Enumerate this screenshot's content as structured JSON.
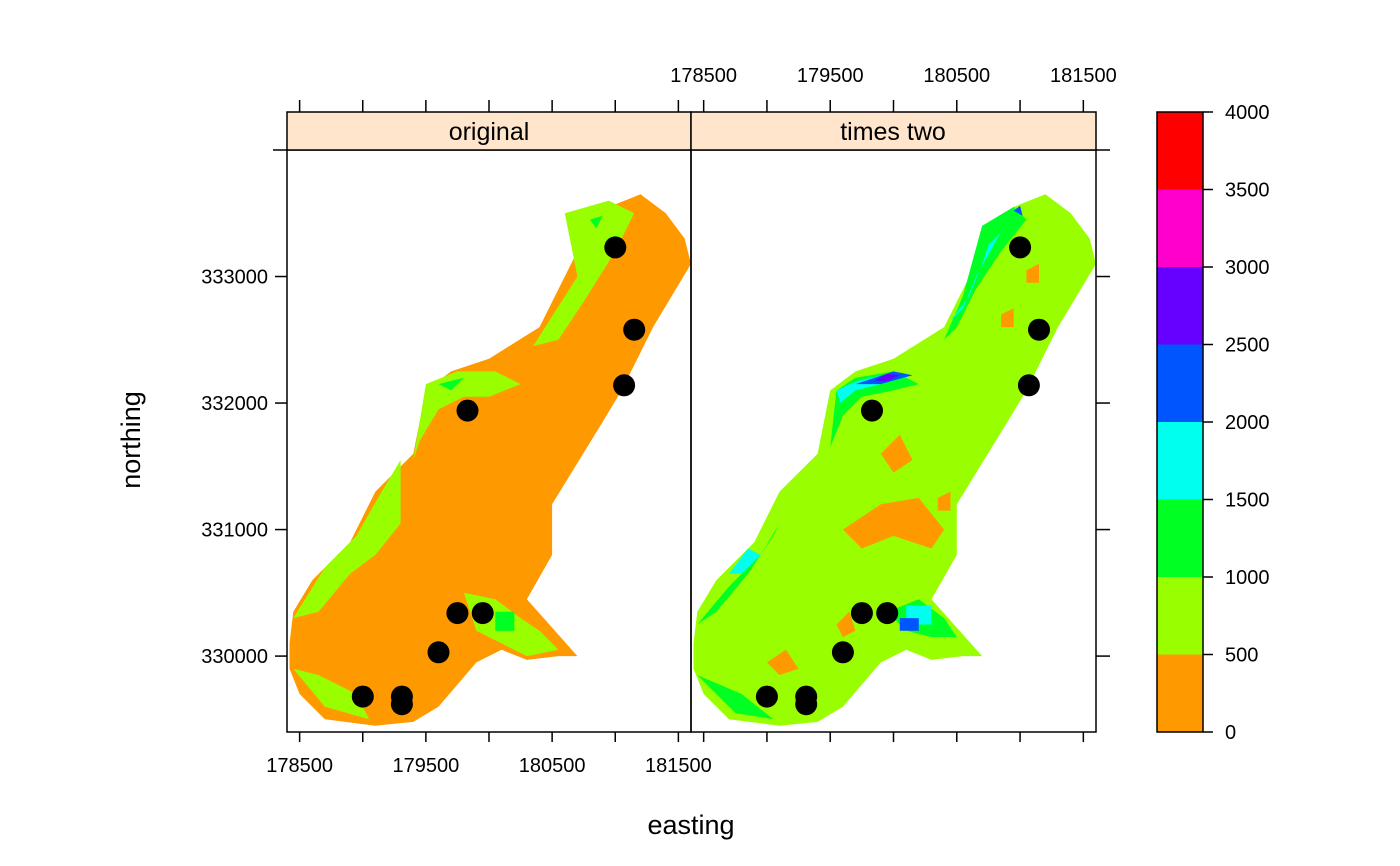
{
  "chart_data": {
    "type": "heatmap",
    "panels": [
      {
        "name": "original",
        "label": "original"
      },
      {
        "name": "times two",
        "label": "times two"
      }
    ],
    "xlabel": "easting",
    "ylabel": "northing",
    "x_ticks": [
      178500,
      179000,
      179500,
      180000,
      180500,
      181000,
      181500
    ],
    "x_tick_labels": [
      "178500",
      "179500",
      "180500",
      "181500"
    ],
    "y_ticks": [
      330000,
      331000,
      332000,
      333000
    ],
    "y_tick_labels": [
      "330000",
      "331000",
      "332000",
      "333000"
    ],
    "xlim": [
      178400,
      181600
    ],
    "ylim": [
      329400,
      334000
    ],
    "colorbar": {
      "breaks": [
        0,
        500,
        1000,
        1500,
        2000,
        2500,
        3000,
        3500,
        4000
      ],
      "tick_labels": [
        "0",
        "500",
        "1000",
        "1500",
        "2000",
        "2500",
        "3000",
        "3500",
        "4000"
      ],
      "colors": [
        "#FF9900",
        "#99FF00",
        "#00FF22",
        "#00FFEE",
        "#0055FF",
        "#6600FF",
        "#FF00CC",
        "#FF0000"
      ]
    },
    "points": [
      {
        "x": 181000,
        "y": 333230
      },
      {
        "x": 181150,
        "y": 332580
      },
      {
        "x": 181070,
        "y": 332140
      },
      {
        "x": 179830,
        "y": 331940
      },
      {
        "x": 179750,
        "y": 330340
      },
      {
        "x": 179950,
        "y": 330340
      },
      {
        "x": 179600,
        "y": 330030
      },
      {
        "x": 179000,
        "y": 329680
      },
      {
        "x": 179310,
        "y": 329680
      },
      {
        "x": 179310,
        "y": 329620
      }
    ],
    "region_outline": [
      [
        178420,
        330100
      ],
      [
        178420,
        329900
      ],
      [
        178500,
        329700
      ],
      [
        178700,
        329500
      ],
      [
        179100,
        329450
      ],
      [
        179400,
        329480
      ],
      [
        179600,
        329600
      ],
      [
        179900,
        329950
      ],
      [
        180100,
        330050
      ],
      [
        180300,
        329970
      ],
      [
        180550,
        330000
      ],
      [
        180700,
        330000
      ],
      [
        180300,
        330450
      ],
      [
        180500,
        330800
      ],
      [
        180500,
        331200
      ],
      [
        180900,
        331850
      ],
      [
        181050,
        332100
      ],
      [
        181300,
        332600
      ],
      [
        181600,
        333100
      ],
      [
        181550,
        333300
      ],
      [
        181400,
        333500
      ],
      [
        181200,
        333650
      ],
      [
        180950,
        333550
      ],
      [
        180700,
        333200
      ],
      [
        180550,
        332900
      ],
      [
        180400,
        332600
      ],
      [
        180000,
        332350
      ],
      [
        179700,
        332250
      ],
      [
        179500,
        332100
      ],
      [
        179400,
        331600
      ],
      [
        179100,
        331300
      ],
      [
        178900,
        330900
      ],
      [
        178600,
        330600
      ],
      [
        178450,
        330350
      ]
    ],
    "original_zones": [
      {
        "class": 1,
        "poly": [
          [
            180600,
            333500
          ],
          [
            180950,
            333600
          ],
          [
            181150,
            333500
          ],
          [
            181000,
            333200
          ],
          [
            180750,
            332800
          ],
          [
            180550,
            332500
          ],
          [
            180350,
            332450
          ],
          [
            180700,
            333000
          ]
        ]
      },
      {
        "class": 1,
        "poly": [
          [
            179500,
            332150
          ],
          [
            179750,
            332250
          ],
          [
            180050,
            332250
          ],
          [
            180250,
            332150
          ],
          [
            180000,
            332050
          ],
          [
            179800,
            332050
          ],
          [
            179600,
            331950
          ],
          [
            179450,
            331700
          ],
          [
            179400,
            331550
          ]
        ]
      },
      {
        "class": 1,
        "poly": [
          [
            178450,
            330300
          ],
          [
            178700,
            330700
          ],
          [
            178950,
            330950
          ],
          [
            179150,
            331300
          ],
          [
            179300,
            331550
          ],
          [
            179300,
            331050
          ],
          [
            179100,
            330800
          ],
          [
            178900,
            330650
          ],
          [
            178650,
            330350
          ]
        ]
      },
      {
        "class": 1,
        "poly": [
          [
            178450,
            329900
          ],
          [
            178700,
            329600
          ],
          [
            179050,
            329500
          ],
          [
            178950,
            329700
          ],
          [
            178650,
            329850
          ]
        ]
      },
      {
        "class": 1,
        "poly": [
          [
            179800,
            330500
          ],
          [
            180050,
            330450
          ],
          [
            180250,
            330300
          ],
          [
            180400,
            330200
          ],
          [
            180550,
            330050
          ],
          [
            180300,
            330000
          ],
          [
            180100,
            330100
          ],
          [
            179900,
            330200
          ]
        ]
      },
      {
        "class": 2,
        "poly": [
          [
            180050,
            330350
          ],
          [
            180200,
            330350
          ],
          [
            180200,
            330200
          ],
          [
            180050,
            330200
          ]
        ]
      },
      {
        "class": 2,
        "poly": [
          [
            179600,
            332150
          ],
          [
            179800,
            332200
          ],
          [
            179700,
            332100
          ]
        ]
      },
      {
        "class": 2,
        "poly": [
          [
            180800,
            333450
          ],
          [
            180900,
            333480
          ],
          [
            180850,
            333380
          ]
        ]
      }
    ],
    "doubled_zones": [
      {
        "class": 0,
        "poly": [
          [
            179900,
            331600
          ],
          [
            180050,
            331750
          ],
          [
            180150,
            331550
          ],
          [
            180000,
            331450
          ]
        ]
      },
      {
        "class": 0,
        "poly": [
          [
            179600,
            331000
          ],
          [
            179900,
            331200
          ],
          [
            180200,
            331250
          ],
          [
            180400,
            331000
          ],
          [
            180300,
            330850
          ],
          [
            180000,
            330950
          ],
          [
            179750,
            330850
          ]
        ]
      },
      {
        "class": 0,
        "poly": [
          [
            179000,
            329950
          ],
          [
            179150,
            330050
          ],
          [
            179250,
            329900
          ],
          [
            179100,
            329850
          ]
        ]
      },
      {
        "class": 0,
        "poly": [
          [
            179550,
            330250
          ],
          [
            179650,
            330350
          ],
          [
            179700,
            330200
          ],
          [
            179600,
            330150
          ]
        ]
      },
      {
        "class": 0,
        "poly": [
          [
            181050,
            333050
          ],
          [
            181150,
            333100
          ],
          [
            181150,
            332950
          ],
          [
            181050,
            332950
          ]
        ]
      },
      {
        "class": 0,
        "poly": [
          [
            180850,
            332700
          ],
          [
            180950,
            332750
          ],
          [
            180950,
            332600
          ],
          [
            180850,
            332600
          ]
        ]
      },
      {
        "class": 0,
        "poly": [
          [
            180350,
            331250
          ],
          [
            180450,
            331300
          ],
          [
            180450,
            331150
          ],
          [
            180350,
            331150
          ]
        ]
      },
      {
        "class": 2,
        "poly": [
          [
            180700,
            333400
          ],
          [
            180950,
            333550
          ],
          [
            181050,
            333450
          ],
          [
            180850,
            333200
          ],
          [
            180650,
            332900
          ],
          [
            180500,
            332600
          ],
          [
            180400,
            332500
          ],
          [
            180550,
            332850
          ]
        ]
      },
      {
        "class": 2,
        "poly": [
          [
            179550,
            332100
          ],
          [
            179700,
            332200
          ],
          [
            180000,
            332250
          ],
          [
            180200,
            332150
          ],
          [
            180000,
            332100
          ],
          [
            179750,
            332050
          ],
          [
            179600,
            331900
          ],
          [
            179500,
            331650
          ]
        ]
      },
      {
        "class": 2,
        "poly": [
          [
            178450,
            330250
          ],
          [
            178700,
            330550
          ],
          [
            178950,
            330800
          ],
          [
            179100,
            331050
          ],
          [
            179200,
            331250
          ],
          [
            179050,
            330950
          ],
          [
            178850,
            330650
          ],
          [
            178600,
            330350
          ]
        ]
      },
      {
        "class": 2,
        "poly": [
          [
            178450,
            329850
          ],
          [
            178750,
            329550
          ],
          [
            179050,
            329500
          ],
          [
            178800,
            329700
          ]
        ]
      },
      {
        "class": 2,
        "poly": [
          [
            179950,
            330350
          ],
          [
            180200,
            330450
          ],
          [
            180400,
            330300
          ],
          [
            180500,
            330150
          ],
          [
            180300,
            330150
          ],
          [
            180100,
            330200
          ]
        ]
      },
      {
        "class": 3,
        "poly": [
          [
            179550,
            332100
          ],
          [
            179700,
            332170
          ],
          [
            179950,
            332230
          ],
          [
            180150,
            332220
          ],
          [
            179900,
            332150
          ],
          [
            179700,
            332100
          ],
          [
            179580,
            332000
          ]
        ]
      },
      {
        "class": 3,
        "poly": [
          [
            180450,
            332650
          ],
          [
            180600,
            332850
          ],
          [
            180700,
            333100
          ],
          [
            180750,
            333250
          ],
          [
            180850,
            333350
          ],
          [
            180650,
            333000
          ],
          [
            180550,
            332750
          ]
        ]
      },
      {
        "class": 3,
        "poly": [
          [
            178700,
            330650
          ],
          [
            178850,
            330850
          ],
          [
            178950,
            330800
          ],
          [
            178800,
            330650
          ]
        ]
      },
      {
        "class": 3,
        "poly": [
          [
            180100,
            330400
          ],
          [
            180300,
            330400
          ],
          [
            180300,
            330250
          ],
          [
            180100,
            330250
          ]
        ]
      },
      {
        "class": 4,
        "poly": [
          [
            180050,
            330300
          ],
          [
            180200,
            330300
          ],
          [
            180200,
            330200
          ],
          [
            180050,
            330200
          ]
        ]
      },
      {
        "class": 4,
        "poly": [
          [
            179700,
            332150
          ],
          [
            180000,
            332250
          ],
          [
            180150,
            332220
          ],
          [
            179900,
            332150
          ]
        ]
      },
      {
        "class": 5,
        "poly": [
          [
            179850,
            332180
          ],
          [
            179950,
            332230
          ],
          [
            180050,
            332220
          ],
          [
            179950,
            332170
          ]
        ]
      },
      {
        "class": 4,
        "poly": [
          [
            180950,
            333520
          ],
          [
            181000,
            333560
          ],
          [
            181020,
            333480
          ]
        ]
      }
    ]
  }
}
